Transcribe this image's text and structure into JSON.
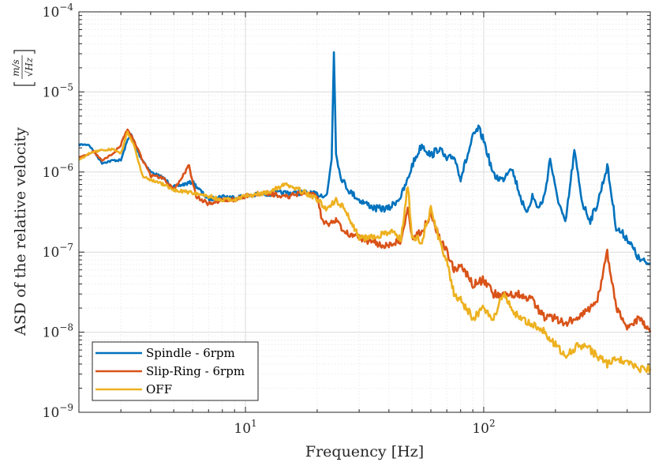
{
  "chart_data": {
    "type": "line",
    "x_scale": "log",
    "y_scale": "log",
    "xlabel": "Frequency [Hz]",
    "ylabel": "ASD of the relative velocity",
    "ylabel_unit": "m/s / √Hz",
    "xlim": [
      2,
      500
    ],
    "ylim": [
      1e-09,
      0.0001
    ],
    "x_ticks": [
      {
        "value": 10,
        "base": "10",
        "exp": "1"
      },
      {
        "value": 100,
        "base": "10",
        "exp": "2"
      }
    ],
    "y_ticks": [
      {
        "value": 1e-09,
        "base": "10",
        "exp": "−9"
      },
      {
        "value": 1e-08,
        "base": "10",
        "exp": "−8"
      },
      {
        "value": 1e-07,
        "base": "10",
        "exp": "−7"
      },
      {
        "value": 1e-06,
        "base": "10",
        "exp": "−6"
      },
      {
        "value": 1e-05,
        "base": "10",
        "exp": "−5"
      },
      {
        "value": 0.0001,
        "base": "10",
        "exp": "−4"
      }
    ],
    "grid": true,
    "minor_grid": true,
    "legend_position": "bottom-left",
    "series": [
      {
        "name": "Spindle - 6rpm",
        "color": "#0072BD",
        "points": [
          [
            2,
            2.2e-06
          ],
          [
            2.2,
            2.2e-06
          ],
          [
            2.5,
            1.3e-06
          ],
          [
            2.8,
            1.4e-06
          ],
          [
            3.0,
            1.4e-06
          ],
          [
            3.2,
            2.5e-06
          ],
          [
            3.3,
            3e-06
          ],
          [
            3.6,
            1.6e-06
          ],
          [
            4.0,
            1e-06
          ],
          [
            4.5,
            8.5e-07
          ],
          [
            5.0,
            6.5e-07
          ],
          [
            6.0,
            7.5e-07
          ],
          [
            7.0,
            4.5e-07
          ],
          [
            8.0,
            5e-07
          ],
          [
            9.0,
            4.8e-07
          ],
          [
            10,
            5e-07
          ],
          [
            12,
            5.3e-07
          ],
          [
            15,
            5.5e-07
          ],
          [
            18,
            5.5e-07
          ],
          [
            20,
            5.2e-07
          ],
          [
            22,
            5.2e-07
          ],
          [
            23,
            1.5e-06
          ],
          [
            23.5,
            3.2e-05
          ],
          [
            24,
            1.8e-06
          ],
          [
            25,
            9e-07
          ],
          [
            27,
            6e-07
          ],
          [
            30,
            4.5e-07
          ],
          [
            35,
            3.5e-07
          ],
          [
            40,
            3.5e-07
          ],
          [
            45,
            5e-07
          ],
          [
            48,
            8e-07
          ],
          [
            50,
            1.2e-06
          ],
          [
            55,
            2.2e-06
          ],
          [
            60,
            1.6e-06
          ],
          [
            65,
            2e-06
          ],
          [
            70,
            1.4e-06
          ],
          [
            75,
            1.6e-06
          ],
          [
            80,
            8.5e-07
          ],
          [
            85,
            1.5e-06
          ],
          [
            90,
            2.7e-06
          ],
          [
            95,
            3.5e-06
          ],
          [
            100,
            2.5e-06
          ],
          [
            110,
            9e-07
          ],
          [
            120,
            8e-07
          ],
          [
            130,
            1.2e-06
          ],
          [
            140,
            6e-07
          ],
          [
            150,
            3e-07
          ],
          [
            160,
            5e-07
          ],
          [
            170,
            3.5e-07
          ],
          [
            180,
            5e-07
          ],
          [
            190,
            1.5e-06
          ],
          [
            200,
            6e-07
          ],
          [
            220,
            2.2e-07
          ],
          [
            240,
            1.8e-06
          ],
          [
            260,
            4e-07
          ],
          [
            280,
            2.5e-07
          ],
          [
            300,
            4e-07
          ],
          [
            330,
            1.2e-06
          ],
          [
            360,
            2e-07
          ],
          [
            400,
            1.5e-07
          ],
          [
            450,
            8e-08
          ],
          [
            500,
            7e-08
          ]
        ]
      },
      {
        "name": "Slip-Ring - 6rpm",
        "color": "#D95319",
        "points": [
          [
            2,
            1.5e-06
          ],
          [
            2.3,
            1.8e-06
          ],
          [
            2.5,
            1.4e-06
          ],
          [
            2.8,
            1.7e-06
          ],
          [
            3.0,
            2.2e-06
          ],
          [
            3.2,
            3.5e-06
          ],
          [
            3.4,
            2.5e-06
          ],
          [
            3.7,
            1.4e-06
          ],
          [
            4.0,
            9e-07
          ],
          [
            4.5,
            8.5e-07
          ],
          [
            5.0,
            6e-07
          ],
          [
            5.8,
            1.2e-06
          ],
          [
            6.2,
            5e-07
          ],
          [
            7.0,
            4e-07
          ],
          [
            8.0,
            4.5e-07
          ],
          [
            9.0,
            4.5e-07
          ],
          [
            10,
            5e-07
          ],
          [
            12,
            5.5e-07
          ],
          [
            15,
            5e-07
          ],
          [
            18,
            5.5e-07
          ],
          [
            20,
            4.8e-07
          ],
          [
            21,
            2.5e-07
          ],
          [
            22,
            2.2e-07
          ],
          [
            24,
            2.5e-07
          ],
          [
            26,
            1.8e-07
          ],
          [
            30,
            1.5e-07
          ],
          [
            35,
            1.3e-07
          ],
          [
            40,
            1.2e-07
          ],
          [
            45,
            1.4e-07
          ],
          [
            48,
            3.5e-07
          ],
          [
            50,
            1.5e-07
          ],
          [
            55,
            1.8e-07
          ],
          [
            60,
            3e-07
          ],
          [
            65,
            1.5e-07
          ],
          [
            70,
            1e-07
          ],
          [
            75,
            6e-08
          ],
          [
            80,
            7e-08
          ],
          [
            90,
            4e-08
          ],
          [
            100,
            4.5e-08
          ],
          [
            110,
            3e-08
          ],
          [
            120,
            3e-08
          ],
          [
            140,
            3e-08
          ],
          [
            160,
            2.5e-08
          ],
          [
            180,
            1.5e-08
          ],
          [
            200,
            1.5e-08
          ],
          [
            220,
            1.3e-08
          ],
          [
            250,
            1.5e-08
          ],
          [
            280,
            2e-08
          ],
          [
            300,
            2.5e-08
          ],
          [
            330,
            1e-07
          ],
          [
            360,
            2e-08
          ],
          [
            400,
            1.2e-08
          ],
          [
            450,
            1.5e-08
          ],
          [
            500,
            1e-08
          ]
        ]
      },
      {
        "name": "OFF",
        "color": "#EDB120",
        "points": [
          [
            2,
            1.4e-06
          ],
          [
            2.2,
            1.7e-06
          ],
          [
            2.5,
            1.9e-06
          ],
          [
            2.8,
            1.9e-06
          ],
          [
            3.0,
            1.7e-06
          ],
          [
            3.2,
            3.2e-06
          ],
          [
            3.4,
            2.2e-06
          ],
          [
            3.7,
            9e-07
          ],
          [
            4.0,
            8e-07
          ],
          [
            4.5,
            7e-07
          ],
          [
            5.0,
            6e-07
          ],
          [
            6.0,
            5.5e-07
          ],
          [
            7.0,
            5e-07
          ],
          [
            8.0,
            4.5e-07
          ],
          [
            9.0,
            4.5e-07
          ],
          [
            10,
            5e-07
          ],
          [
            12,
            5.5e-07
          ],
          [
            15,
            7e-07
          ],
          [
            18,
            5.5e-07
          ],
          [
            20,
            4.5e-07
          ],
          [
            22,
            3.5e-07
          ],
          [
            24,
            4.5e-07
          ],
          [
            26,
            3.5e-07
          ],
          [
            30,
            1.5e-07
          ],
          [
            35,
            1.5e-07
          ],
          [
            40,
            1.8e-07
          ],
          [
            45,
            1.5e-07
          ],
          [
            48,
            7e-07
          ],
          [
            50,
            1.5e-07
          ],
          [
            55,
            1.4e-07
          ],
          [
            60,
            3.5e-07
          ],
          [
            65,
            1.4e-07
          ],
          [
            70,
            8e-08
          ],
          [
            75,
            3e-08
          ],
          [
            80,
            2.5e-08
          ],
          [
            90,
            1.5e-08
          ],
          [
            100,
            2e-08
          ],
          [
            110,
            1.5e-08
          ],
          [
            120,
            3e-08
          ],
          [
            140,
            1.5e-08
          ],
          [
            160,
            1.3e-08
          ],
          [
            180,
            1e-08
          ],
          [
            200,
            7e-09
          ],
          [
            220,
            5e-09
          ],
          [
            250,
            7e-09
          ],
          [
            280,
            6e-09
          ],
          [
            300,
            5e-09
          ],
          [
            330,
            4e-09
          ],
          [
            360,
            5e-09
          ],
          [
            400,
            4e-09
          ],
          [
            450,
            3.5e-09
          ],
          [
            500,
            3.5e-09
          ]
        ]
      }
    ]
  }
}
